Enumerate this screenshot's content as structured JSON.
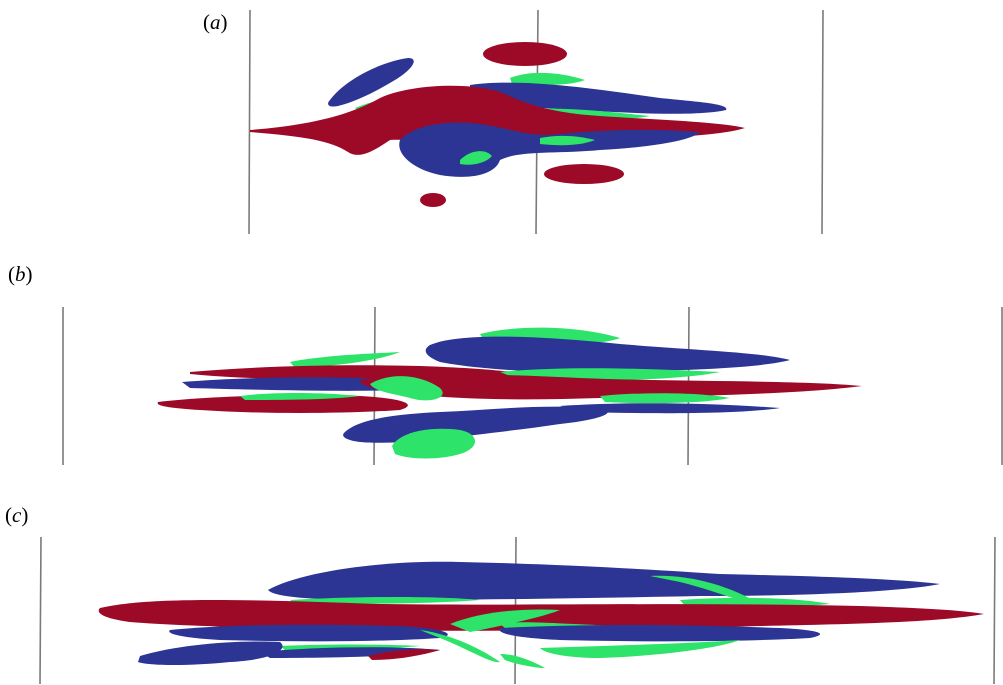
{
  "figure": {
    "panels": [
      {
        "id": "a",
        "label": "(a)",
        "letter": "a"
      },
      {
        "id": "b",
        "label": "(b)",
        "letter": "b"
      },
      {
        "id": "c",
        "label": "(c)",
        "letter": "c"
      }
    ],
    "colors": {
      "red": "#9c0a28",
      "blue": "#2c3593",
      "green": "#2ee36a",
      "wall": "#7a7a7a"
    }
  }
}
